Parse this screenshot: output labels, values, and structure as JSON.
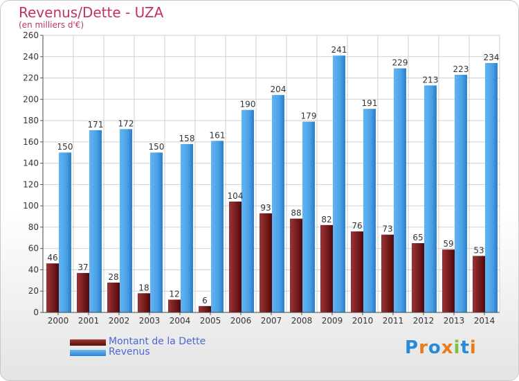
{
  "chart_data": {
    "type": "bar",
    "title": "Revenus/Dette - UZA",
    "subtitle": "(en milliers d'€)",
    "categories": [
      "2000",
      "2001",
      "2002",
      "2003",
      "2004",
      "2005",
      "2006",
      "2007",
      "2008",
      "2009",
      "2010",
      "2011",
      "2012",
      "2013",
      "2014"
    ],
    "series": [
      {
        "name": "Montant de la Dette",
        "values": [
          46,
          37,
          28,
          18,
          12,
          6,
          104,
          93,
          88,
          82,
          76,
          73,
          65,
          59,
          53
        ],
        "color": "#7a1e1e"
      },
      {
        "name": "Revenus",
        "values": [
          150,
          171,
          172,
          150,
          158,
          161,
          190,
          204,
          179,
          241,
          191,
          229,
          213,
          223,
          234
        ],
        "color": "#4aa3e8"
      }
    ],
    "ylim": [
      0,
      260
    ],
    "yticks": [
      0,
      20,
      40,
      60,
      80,
      100,
      120,
      140,
      160,
      180,
      200,
      220,
      240,
      260
    ],
    "grid": true,
    "legend_position": "bottom-left"
  },
  "logo": {
    "text": "Proxiti",
    "colors": [
      "#2a8ad8",
      "#e87b1a",
      "#2a8ad8",
      "#e87b1a",
      "#7cc242",
      "#2a8ad8",
      "#e87b1a"
    ]
  }
}
